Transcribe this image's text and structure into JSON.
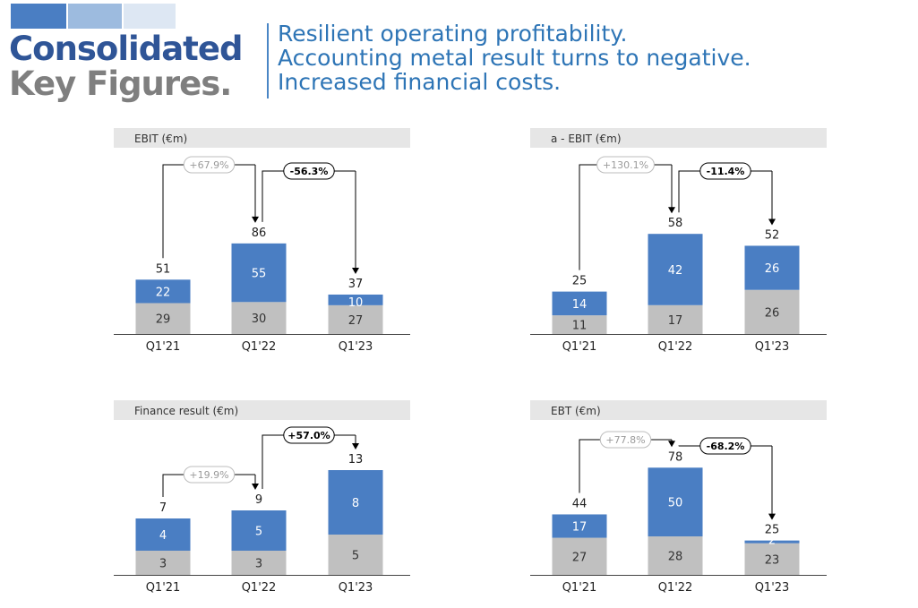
{
  "header": {
    "title_line1": "Consolidated",
    "title_line2": "Key Figures.",
    "subtitle_lines": [
      "Resilient operating profitability.",
      "Accounting metal result turns to negative.",
      "Increased financial costs."
    ]
  },
  "colors": {
    "accent_blue": "#4a7ec3",
    "bar_grey": "#c0c0c0",
    "panel_bg": "#e6e6e6",
    "title_blue": "#2f5597",
    "title_grey": "#7f7f7f",
    "subtitle_blue": "#2e75b6",
    "deco_1": "#4a7ec3",
    "deco_2": "#9dbbdf",
    "deco_3": "#dde7f3"
  },
  "chart_data": [
    {
      "type": "bar",
      "stacked": true,
      "title": "EBIT (€m)",
      "categories": [
        "Q1'21",
        "Q1'22",
        "Q1'23"
      ],
      "series": [
        {
          "values": [
            29,
            30,
            27
          ],
          "color": "#c0c0c0"
        },
        {
          "values": [
            22,
            55,
            10
          ],
          "color": "#4a7ec3"
        }
      ],
      "totals": [
        51,
        86,
        37
      ],
      "changes": [
        {
          "from": 0,
          "to": 1,
          "label": "+67.9%",
          "emphasis": false
        },
        {
          "from": 1,
          "to": 2,
          "label": "-56.3%",
          "emphasis": true
        }
      ]
    },
    {
      "type": "bar",
      "stacked": true,
      "title": "a - EBIT (€m)",
      "categories": [
        "Q1'21",
        "Q1'22",
        "Q1'23"
      ],
      "series": [
        {
          "values": [
            11,
            17,
            26
          ],
          "color": "#c0c0c0"
        },
        {
          "values": [
            14,
            42,
            26
          ],
          "color": "#4a7ec3"
        }
      ],
      "totals": [
        25,
        58,
        52
      ],
      "changes": [
        {
          "from": 0,
          "to": 1,
          "label": "+130.1%",
          "emphasis": false
        },
        {
          "from": 1,
          "to": 2,
          "label": "-11.4%",
          "emphasis": true
        }
      ]
    },
    {
      "type": "bar",
      "stacked": true,
      "title": "Finance result (€m)",
      "categories": [
        "Q1'21",
        "Q1'22",
        "Q1'23"
      ],
      "series": [
        {
          "values": [
            3,
            3,
            5
          ],
          "color": "#c0c0c0"
        },
        {
          "values": [
            4,
            5,
            8
          ],
          "color": "#4a7ec3"
        }
      ],
      "totals": [
        7,
        9,
        13
      ],
      "changes": [
        {
          "from": 0,
          "to": 1,
          "label": "+19.9%",
          "emphasis": false
        },
        {
          "from": 1,
          "to": 2,
          "label": "+57.0%",
          "emphasis": true
        }
      ]
    },
    {
      "type": "bar",
      "stacked": true,
      "title": "EBT (€m)",
      "categories": [
        "Q1'21",
        "Q1'22",
        "Q1'23"
      ],
      "series": [
        {
          "values": [
            27,
            28,
            23
          ],
          "color": "#c0c0c0"
        },
        {
          "values": [
            17,
            50,
            2
          ],
          "color": "#4a7ec3"
        }
      ],
      "totals": [
        44,
        78,
        25
      ],
      "changes": [
        {
          "from": 0,
          "to": 1,
          "label": "+77.8%",
          "emphasis": false
        },
        {
          "from": 1,
          "to": 2,
          "label": "-68.2%",
          "emphasis": true
        }
      ]
    }
  ]
}
